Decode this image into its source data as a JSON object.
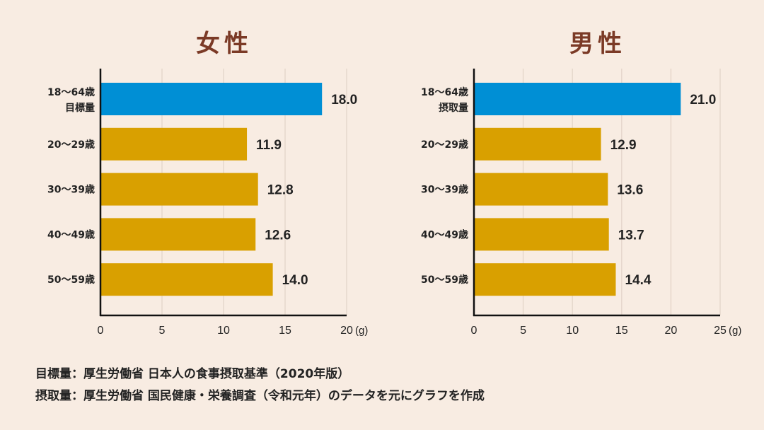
{
  "colors": {
    "background": "#f8ece2",
    "target": "#008fd5",
    "intake": "#d9a000",
    "title": "#7b3a26"
  },
  "chart_data": [
    {
      "type": "bar",
      "orientation": "horizontal",
      "title": "女性",
      "categories": [
        "18〜64歳|目標量",
        "20〜29歳",
        "30〜39歳",
        "40〜49歳",
        "50〜59歳"
      ],
      "values": [
        18.0,
        11.9,
        12.8,
        12.6,
        14.0
      ],
      "value_labels": [
        "18.0",
        "11.9",
        "12.8",
        "12.6",
        "14.0"
      ],
      "xticks": [
        "0",
        "5",
        "10",
        "15",
        "20"
      ],
      "xlim": [
        0,
        20
      ],
      "unit": "(g)",
      "grid": true
    },
    {
      "type": "bar",
      "orientation": "horizontal",
      "title": "男性",
      "categories": [
        "18〜64歳|摂取量",
        "20〜29歳",
        "30〜39歳",
        "40〜49歳",
        "50〜59歳"
      ],
      "values": [
        21.0,
        12.9,
        13.6,
        13.7,
        14.4
      ],
      "value_labels": [
        "21.0",
        "12.9",
        "13.6",
        "13.7",
        "14.4"
      ],
      "xticks": [
        "0",
        "5",
        "10",
        "15",
        "20",
        "25"
      ],
      "xlim": [
        0,
        25
      ],
      "unit": "(g)",
      "grid": true
    }
  ],
  "notes": [
    "目標量：厚生労働省 日本人の食事摂取基準（2020年版）",
    "摂取量：厚生労働省 国民健康・栄養調査（令和元年）のデータを元にグラフを作成"
  ]
}
